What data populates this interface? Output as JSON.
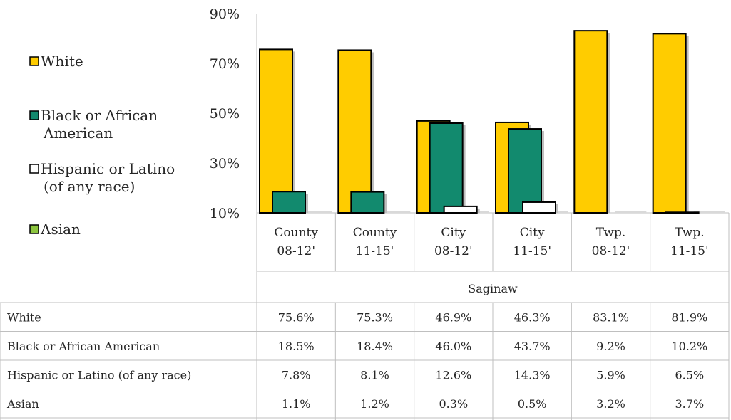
{
  "chart_data": {
    "type": "bar",
    "categories": [
      [
        "County",
        "08-12'"
      ],
      [
        "County",
        "11-15'"
      ],
      [
        "City",
        "08-12'"
      ],
      [
        "City",
        "11-15'"
      ],
      [
        "Twp.",
        "08-12'"
      ],
      [
        "Twp.",
        "11-15'"
      ]
    ],
    "group_label": "Saginaw",
    "series": [
      {
        "name": "White",
        "legend": [
          "White"
        ],
        "color": "#FFCC00",
        "values": [
          75.6,
          75.3,
          46.9,
          46.3,
          83.1,
          81.9
        ]
      },
      {
        "name": "Black or African American",
        "legend": [
          "Black or African",
          "American"
        ],
        "color": "#128A6E",
        "values": [
          18.5,
          18.4,
          46.0,
          43.7,
          9.2,
          10.2
        ]
      },
      {
        "name": "Hispanic or Latino (of any race)",
        "legend": [
          "Hispanic or Latino",
          "(of any race)"
        ],
        "color": "#FFFFFF",
        "values": [
          7.8,
          8.1,
          12.6,
          14.3,
          5.9,
          6.5
        ]
      },
      {
        "name": "Asian",
        "legend": [
          "Asian"
        ],
        "color": "#8DC63F",
        "values": [
          1.1,
          1.2,
          0.3,
          0.5,
          3.2,
          3.7
        ]
      }
    ],
    "yticks": [
      "90%",
      "70%",
      "50%",
      "30%",
      "10%"
    ],
    "ytick_values": [
      90,
      70,
      50,
      30,
      10
    ],
    "ylim": [
      10,
      90
    ],
    "legend_position": "left",
    "table": [
      {
        "label": "White",
        "values": [
          "75.6%",
          "75.3%",
          "46.9%",
          "46.3%",
          "83.1%",
          "81.9%"
        ]
      },
      {
        "label": "Black or African American",
        "values": [
          "18.5%",
          "18.4%",
          "46.0%",
          "43.7%",
          "9.2%",
          "10.2%"
        ]
      },
      {
        "label": "Hispanic or Latino (of any race)",
        "values": [
          "7.8%",
          "8.1%",
          "12.6%",
          "14.3%",
          "5.9%",
          "6.5%"
        ]
      },
      {
        "label": "Asian",
        "values": [
          "1.1%",
          "1.2%",
          "0.3%",
          "0.5%",
          "3.2%",
          "3.7%"
        ]
      }
    ]
  }
}
